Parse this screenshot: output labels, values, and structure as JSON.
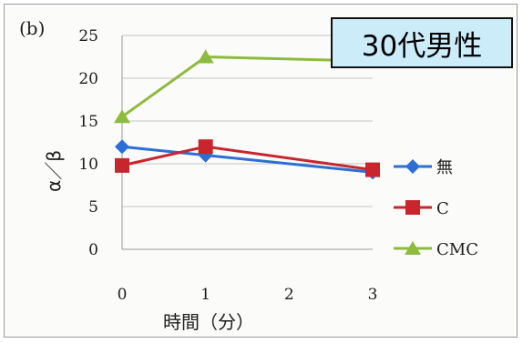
{
  "chart_data": {
    "type": "line",
    "panel_label": "(b)",
    "annotation": "30代男性",
    "x": [
      0,
      1,
      3
    ],
    "x_ticks": [
      "0",
      "1",
      "2",
      "3"
    ],
    "y_ticks": [
      "0",
      "5",
      "10",
      "15",
      "20",
      "25"
    ],
    "xlim": [
      0,
      3
    ],
    "ylim": [
      0,
      25
    ],
    "xlabel": "時間（分）",
    "ylabel": "α／β",
    "grid": true,
    "legend_position": "right",
    "series": [
      {
        "name": "無",
        "values": [
          12.0,
          11.0,
          9.0
        ],
        "color": "#2b6fd6",
        "marker": "diamond"
      },
      {
        "name": "C",
        "values": [
          9.8,
          12.0,
          9.3
        ],
        "color": "#c8252c",
        "marker": "square"
      },
      {
        "name": "CMC",
        "values": [
          15.5,
          22.5,
          22.0
        ],
        "color": "#8dbb3e",
        "marker": "triangle"
      }
    ]
  }
}
